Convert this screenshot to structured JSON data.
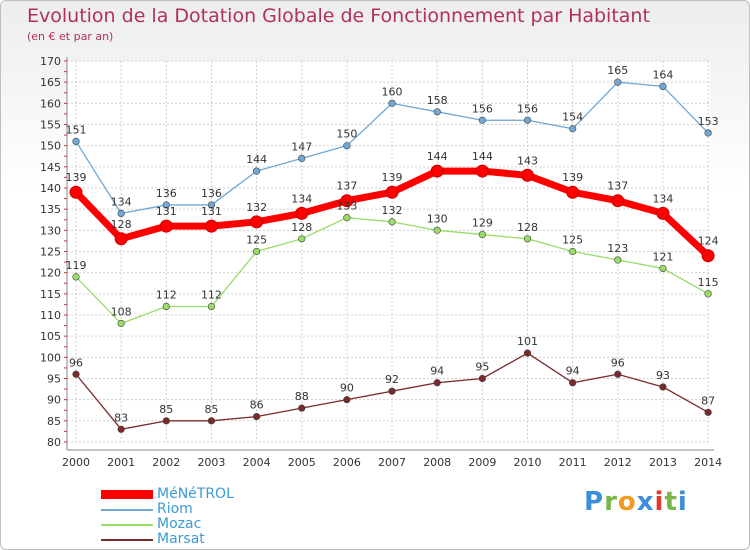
{
  "header": {
    "title": "Evolution de la Dotation Globale de Fonctionnement par Habitant",
    "subtitle": "(en € et par an)"
  },
  "logo": {
    "letters": [
      "P",
      "r",
      "o",
      "x",
      "i",
      "t",
      "i"
    ],
    "colors": [
      "#3c8fd8",
      "#7ab648",
      "#f29a1f",
      "#3c8fd8",
      "#e0392b",
      "#7ab648",
      "#3c8fd8"
    ]
  },
  "chart_data": {
    "type": "line",
    "title": "Evolution de la Dotation Globale de Fonctionnement par Habitant",
    "subtitle": "(en € et par an)",
    "x": [
      "2000",
      "2001",
      "2002",
      "2003",
      "2004",
      "2005",
      "2006",
      "2007",
      "2008",
      "2009",
      "2010",
      "2011",
      "2012",
      "2013",
      "2014"
    ],
    "ylim": [
      80,
      170
    ],
    "yticks": [
      80,
      85,
      90,
      95,
      100,
      105,
      110,
      115,
      120,
      125,
      130,
      135,
      140,
      145,
      150,
      155,
      160,
      165,
      170
    ],
    "grid": true,
    "legend_position": "bottom-left",
    "series": [
      {
        "name": "MéNéTROL",
        "color": "#ff0000",
        "values": [
          139,
          128,
          131,
          131,
          132,
          134,
          137,
          139,
          144,
          144,
          143,
          139,
          137,
          134,
          124
        ]
      },
      {
        "name": "Riom",
        "color": "#6fa8d6",
        "values": [
          151,
          134,
          136,
          136,
          144,
          147,
          150,
          160,
          158,
          156,
          156,
          154,
          165,
          164,
          153
        ]
      },
      {
        "name": "Mozac",
        "color": "#99dd66",
        "values": [
          119,
          108,
          112,
          112,
          125,
          128,
          133,
          132,
          130,
          129,
          128,
          125,
          123,
          121,
          115
        ]
      },
      {
        "name": "Marsat",
        "color": "#7a2a2a",
        "values": [
          96,
          83,
          85,
          85,
          86,
          88,
          90,
          92,
          94,
          95,
          101,
          94,
          96,
          93,
          87
        ]
      }
    ]
  }
}
